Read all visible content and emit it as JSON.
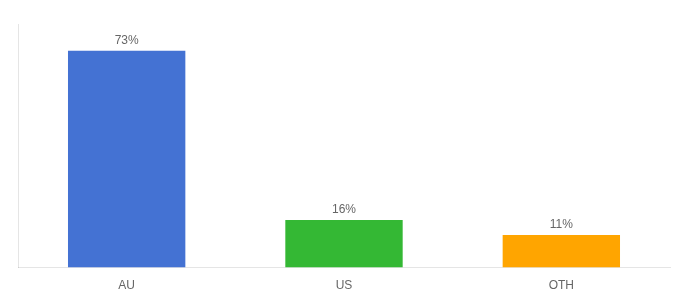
{
  "chart_data": {
    "type": "bar",
    "categories": [
      "AU",
      "US",
      "OTH"
    ],
    "values": [
      73,
      16,
      11
    ],
    "value_labels": [
      "73%",
      "16%",
      "11%"
    ],
    "colors": [
      "#4472d3",
      "#34b834",
      "#ffa500"
    ],
    "ylim": [
      0,
      82
    ],
    "grid": false,
    "data_labels": true,
    "tick_labels": "x"
  }
}
